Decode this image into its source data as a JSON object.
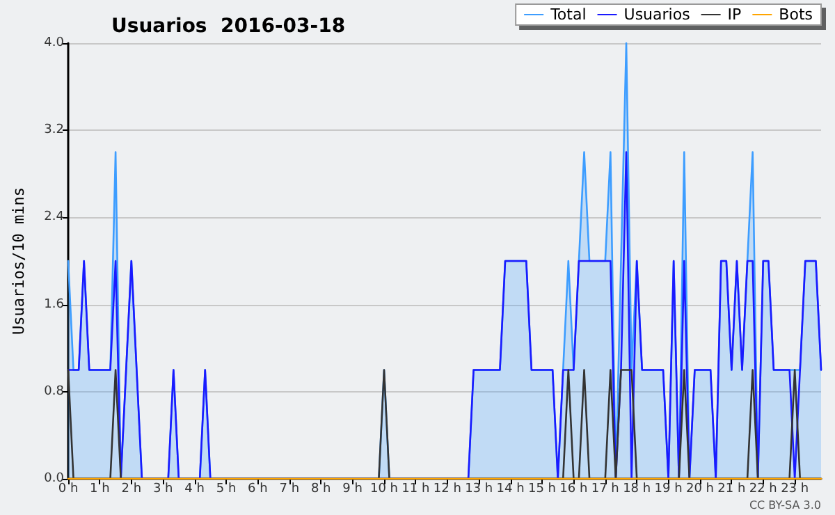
{
  "chart_data": {
    "type": "line",
    "title": "Usuarios  2016-03-18",
    "ylabel": "Usuarios/10 mins",
    "annotations": [
      "CC BY-SA 3.0"
    ],
    "x": [
      "2016-03-18T00:00",
      "2016-03-18T00:10",
      "2016-03-18T00:20",
      "2016-03-18T00:30",
      "2016-03-18T00:40",
      "2016-03-18T00:50",
      "2016-03-18T01:00",
      "2016-03-18T01:10",
      "2016-03-18T01:20",
      "2016-03-18T01:30",
      "2016-03-18T01:40",
      "2016-03-18T01:50",
      "2016-03-18T02:00",
      "2016-03-18T02:10",
      "2016-03-18T02:20",
      "2016-03-18T02:30",
      "2016-03-18T02:40",
      "2016-03-18T02:50",
      "2016-03-18T03:00",
      "2016-03-18T03:10",
      "2016-03-18T03:20",
      "2016-03-18T03:30",
      "2016-03-18T03:40",
      "2016-03-18T03:50",
      "2016-03-18T04:00",
      "2016-03-18T04:10",
      "2016-03-18T04:20",
      "2016-03-18T04:30",
      "2016-03-18T04:40",
      "2016-03-18T04:50",
      "2016-03-18T05:00",
      "2016-03-18T05:10",
      "2016-03-18T05:20",
      "2016-03-18T05:30",
      "2016-03-18T05:40",
      "2016-03-18T05:50",
      "2016-03-18T06:00",
      "2016-03-18T06:10",
      "2016-03-18T06:20",
      "2016-03-18T06:30",
      "2016-03-18T06:40",
      "2016-03-18T06:50",
      "2016-03-18T07:00",
      "2016-03-18T07:10",
      "2016-03-18T07:20",
      "2016-03-18T07:30",
      "2016-03-18T07:40",
      "2016-03-18T07:50",
      "2016-03-18T08:00",
      "2016-03-18T08:10",
      "2016-03-18T08:20",
      "2016-03-18T08:30",
      "2016-03-18T08:40",
      "2016-03-18T08:50",
      "2016-03-18T09:00",
      "2016-03-18T09:10",
      "2016-03-18T09:20",
      "2016-03-18T09:30",
      "2016-03-18T09:40",
      "2016-03-18T09:50",
      "2016-03-18T10:00",
      "2016-03-18T10:10",
      "2016-03-18T10:20",
      "2016-03-18T10:30",
      "2016-03-18T10:40",
      "2016-03-18T10:50",
      "2016-03-18T11:00",
      "2016-03-18T11:10",
      "2016-03-18T11:20",
      "2016-03-18T11:30",
      "2016-03-18T11:40",
      "2016-03-18T11:50",
      "2016-03-18T12:00",
      "2016-03-18T12:10",
      "2016-03-18T12:20",
      "2016-03-18T12:30",
      "2016-03-18T12:40",
      "2016-03-18T12:50",
      "2016-03-18T13:00",
      "2016-03-18T13:10",
      "2016-03-18T13:20",
      "2016-03-18T13:30",
      "2016-03-18T13:40",
      "2016-03-18T13:50",
      "2016-03-18T14:00",
      "2016-03-18T14:10",
      "2016-03-18T14:20",
      "2016-03-18T14:30",
      "2016-03-18T14:40",
      "2016-03-18T14:50",
      "2016-03-18T15:00",
      "2016-03-18T15:10",
      "2016-03-18T15:20",
      "2016-03-18T15:30",
      "2016-03-18T15:40",
      "2016-03-18T15:50",
      "2016-03-18T16:00",
      "2016-03-18T16:10",
      "2016-03-18T16:20",
      "2016-03-18T16:30",
      "2016-03-18T16:40",
      "2016-03-18T16:50",
      "2016-03-18T17:00",
      "2016-03-18T17:10",
      "2016-03-18T17:20",
      "2016-03-18T17:30",
      "2016-03-18T17:40",
      "2016-03-18T17:50",
      "2016-03-18T18:00",
      "2016-03-18T18:10",
      "2016-03-18T18:20",
      "2016-03-18T18:30",
      "2016-03-18T18:40",
      "2016-03-18T18:50",
      "2016-03-18T19:00",
      "2016-03-18T19:10",
      "2016-03-18T19:20",
      "2016-03-18T19:30",
      "2016-03-18T19:40",
      "2016-03-18T19:50",
      "2016-03-18T20:00",
      "2016-03-18T20:10",
      "2016-03-18T20:20",
      "2016-03-18T20:30",
      "2016-03-18T20:40",
      "2016-03-18T20:50",
      "2016-03-18T21:00",
      "2016-03-18T21:10",
      "2016-03-18T21:20",
      "2016-03-18T21:30",
      "2016-03-18T21:40",
      "2016-03-18T21:50",
      "2016-03-18T22:00",
      "2016-03-18T22:10",
      "2016-03-18T22:20",
      "2016-03-18T22:30",
      "2016-03-18T22:40",
      "2016-03-18T22:50",
      "2016-03-18T23:00",
      "2016-03-18T23:10",
      "2016-03-18T23:20",
      "2016-03-18T23:30",
      "2016-03-18T23:40",
      "2016-03-18T23:50"
    ],
    "series": [
      {
        "name": "Total",
        "type": "area",
        "color": "#3d9dff",
        "values": [
          2,
          1,
          1,
          2,
          1,
          1,
          1,
          1,
          1,
          3,
          0,
          1,
          2,
          1,
          0,
          0,
          0,
          0,
          0,
          0,
          1,
          0,
          0,
          0,
          0,
          0,
          1,
          0,
          0,
          0,
          0,
          0,
          0,
          0,
          0,
          0,
          0,
          0,
          0,
          0,
          0,
          0,
          0,
          0,
          0,
          0,
          0,
          0,
          0,
          0,
          0,
          0,
          0,
          0,
          0,
          0,
          0,
          0,
          0,
          0,
          1,
          0,
          0,
          0,
          0,
          0,
          0,
          0,
          0,
          0,
          0,
          0,
          0,
          0,
          0,
          0,
          0,
          1,
          1,
          1,
          1,
          1,
          1,
          2,
          2,
          2,
          2,
          2,
          1,
          1,
          1,
          1,
          1,
          0,
          1,
          2,
          1,
          2,
          3,
          2,
          2,
          2,
          2,
          3,
          0,
          2,
          4,
          1,
          2,
          1,
          1,
          1,
          1,
          1,
          0,
          2,
          0,
          3,
          0,
          1,
          1,
          1,
          1,
          0,
          2,
          2,
          1,
          2,
          1,
          2,
          3,
          0,
          2,
          2,
          1,
          1,
          1,
          1,
          1,
          1,
          2,
          2,
          2,
          1
        ]
      },
      {
        "name": "Usuarios",
        "color": "#1a1aff",
        "values": [
          1,
          1,
          1,
          2,
          1,
          1,
          1,
          1,
          1,
          2,
          0,
          1,
          2,
          1,
          0,
          0,
          0,
          0,
          0,
          0,
          1,
          0,
          0,
          0,
          0,
          0,
          1,
          0,
          0,
          0,
          0,
          0,
          0,
          0,
          0,
          0,
          0,
          0,
          0,
          0,
          0,
          0,
          0,
          0,
          0,
          0,
          0,
          0,
          0,
          0,
          0,
          0,
          0,
          0,
          0,
          0,
          0,
          0,
          0,
          0,
          0,
          0,
          0,
          0,
          0,
          0,
          0,
          0,
          0,
          0,
          0,
          0,
          0,
          0,
          0,
          0,
          0,
          1,
          1,
          1,
          1,
          1,
          1,
          2,
          2,
          2,
          2,
          2,
          1,
          1,
          1,
          1,
          1,
          0,
          1,
          1,
          1,
          2,
          2,
          2,
          2,
          2,
          2,
          2,
          0,
          1,
          3,
          0,
          2,
          1,
          1,
          1,
          1,
          1,
          0,
          2,
          0,
          2,
          0,
          1,
          1,
          1,
          1,
          0,
          2,
          2,
          1,
          2,
          1,
          2,
          2,
          0,
          2,
          2,
          1,
          1,
          1,
          1,
          0,
          1,
          2,
          2,
          2,
          1
        ]
      },
      {
        "name": "IP",
        "color": "#333333",
        "values": [
          1,
          0,
          0,
          0,
          0,
          0,
          0,
          0,
          0,
          1,
          0,
          0,
          0,
          0,
          0,
          0,
          0,
          0,
          0,
          0,
          0,
          0,
          0,
          0,
          0,
          0,
          0,
          0,
          0,
          0,
          0,
          0,
          0,
          0,
          0,
          0,
          0,
          0,
          0,
          0,
          0,
          0,
          0,
          0,
          0,
          0,
          0,
          0,
          0,
          0,
          0,
          0,
          0,
          0,
          0,
          0,
          0,
          0,
          0,
          0,
          1,
          0,
          0,
          0,
          0,
          0,
          0,
          0,
          0,
          0,
          0,
          0,
          0,
          0,
          0,
          0,
          0,
          0,
          0,
          0,
          0,
          0,
          0,
          0,
          0,
          0,
          0,
          0,
          0,
          0,
          0,
          0,
          0,
          0,
          0,
          1,
          0,
          0,
          1,
          0,
          0,
          0,
          0,
          1,
          0,
          1,
          1,
          1,
          0,
          0,
          0,
          0,
          0,
          0,
          0,
          0,
          0,
          1,
          0,
          0,
          0,
          0,
          0,
          0,
          0,
          0,
          0,
          0,
          0,
          0,
          1,
          0,
          0,
          0,
          0,
          0,
          0,
          0,
          1,
          0,
          0,
          0,
          0,
          0
        ]
      },
      {
        "name": "Bots",
        "color": "#ffa500",
        "values": [
          0,
          0,
          0,
          0,
          0,
          0,
          0,
          0,
          0,
          0,
          0,
          0,
          0,
          0,
          0,
          0,
          0,
          0,
          0,
          0,
          0,
          0,
          0,
          0,
          0,
          0,
          0,
          0,
          0,
          0,
          0,
          0,
          0,
          0,
          0,
          0,
          0,
          0,
          0,
          0,
          0,
          0,
          0,
          0,
          0,
          0,
          0,
          0,
          0,
          0,
          0,
          0,
          0,
          0,
          0,
          0,
          0,
          0,
          0,
          0,
          0,
          0,
          0,
          0,
          0,
          0,
          0,
          0,
          0,
          0,
          0,
          0,
          0,
          0,
          0,
          0,
          0,
          0,
          0,
          0,
          0,
          0,
          0,
          0,
          0,
          0,
          0,
          0,
          0,
          0,
          0,
          0,
          0,
          0,
          0,
          0,
          0,
          0,
          0,
          0,
          0,
          0,
          0,
          0,
          0,
          0,
          0,
          0,
          0,
          0,
          0,
          0,
          0,
          0,
          0,
          0,
          0,
          0,
          0,
          0,
          0,
          0,
          0,
          0,
          0,
          0,
          0,
          0,
          0,
          0,
          0,
          0,
          0,
          0,
          0,
          0,
          0,
          0,
          0,
          0,
          0,
          0,
          0,
          0
        ]
      }
    ],
    "xlim": [
      "2016-03-18T00:00",
      "2016-03-18T23:50"
    ],
    "xticks": [
      {
        "value": "2016-03-18T00:00",
        "label": "0 h"
      },
      {
        "value": "2016-03-18T01:00",
        "label": "1 h"
      },
      {
        "value": "2016-03-18T02:00",
        "label": "2 h"
      },
      {
        "value": "2016-03-18T03:00",
        "label": "3 h"
      },
      {
        "value": "2016-03-18T04:00",
        "label": "4 h"
      },
      {
        "value": "2016-03-18T05:00",
        "label": "5 h"
      },
      {
        "value": "2016-03-18T06:00",
        "label": "6 h"
      },
      {
        "value": "2016-03-18T07:00",
        "label": "7 h"
      },
      {
        "value": "2016-03-18T08:00",
        "label": "8 h"
      },
      {
        "value": "2016-03-18T09:00",
        "label": "9 h"
      },
      {
        "value": "2016-03-18T10:00",
        "label": "10 h"
      },
      {
        "value": "2016-03-18T11:00",
        "label": "11 h"
      },
      {
        "value": "2016-03-18T12:00",
        "label": "12 h"
      },
      {
        "value": "2016-03-18T13:00",
        "label": "13 h"
      },
      {
        "value": "2016-03-18T14:00",
        "label": "14 h"
      },
      {
        "value": "2016-03-18T15:00",
        "label": "15 h"
      },
      {
        "value": "2016-03-18T16:00",
        "label": "16 h"
      },
      {
        "value": "2016-03-18T17:00",
        "label": "17 h"
      },
      {
        "value": "2016-03-18T18:00",
        "label": "18 h"
      },
      {
        "value": "2016-03-18T19:00",
        "label": "19 h"
      },
      {
        "value": "2016-03-18T20:00",
        "label": "20 h"
      },
      {
        "value": "2016-03-18T21:00",
        "label": "21 h"
      },
      {
        "value": "2016-03-18T22:00",
        "label": "22 h"
      },
      {
        "value": "2016-03-18T23:00",
        "label": "23 h"
      }
    ],
    "ylim": [
      0,
      4
    ],
    "yticks": [
      {
        "value": 0,
        "label": "0.0"
      },
      {
        "value": 0.8,
        "label": "0.8"
      },
      {
        "value": 1.6,
        "label": "1.6"
      },
      {
        "value": 2.4,
        "label": "2.4"
      },
      {
        "value": 3.2,
        "label": "3.2"
      },
      {
        "value": 4,
        "label": "4.0"
      }
    ],
    "grid": "y",
    "legend": "top right",
    "marker": "none",
    "line_style": "solid"
  }
}
